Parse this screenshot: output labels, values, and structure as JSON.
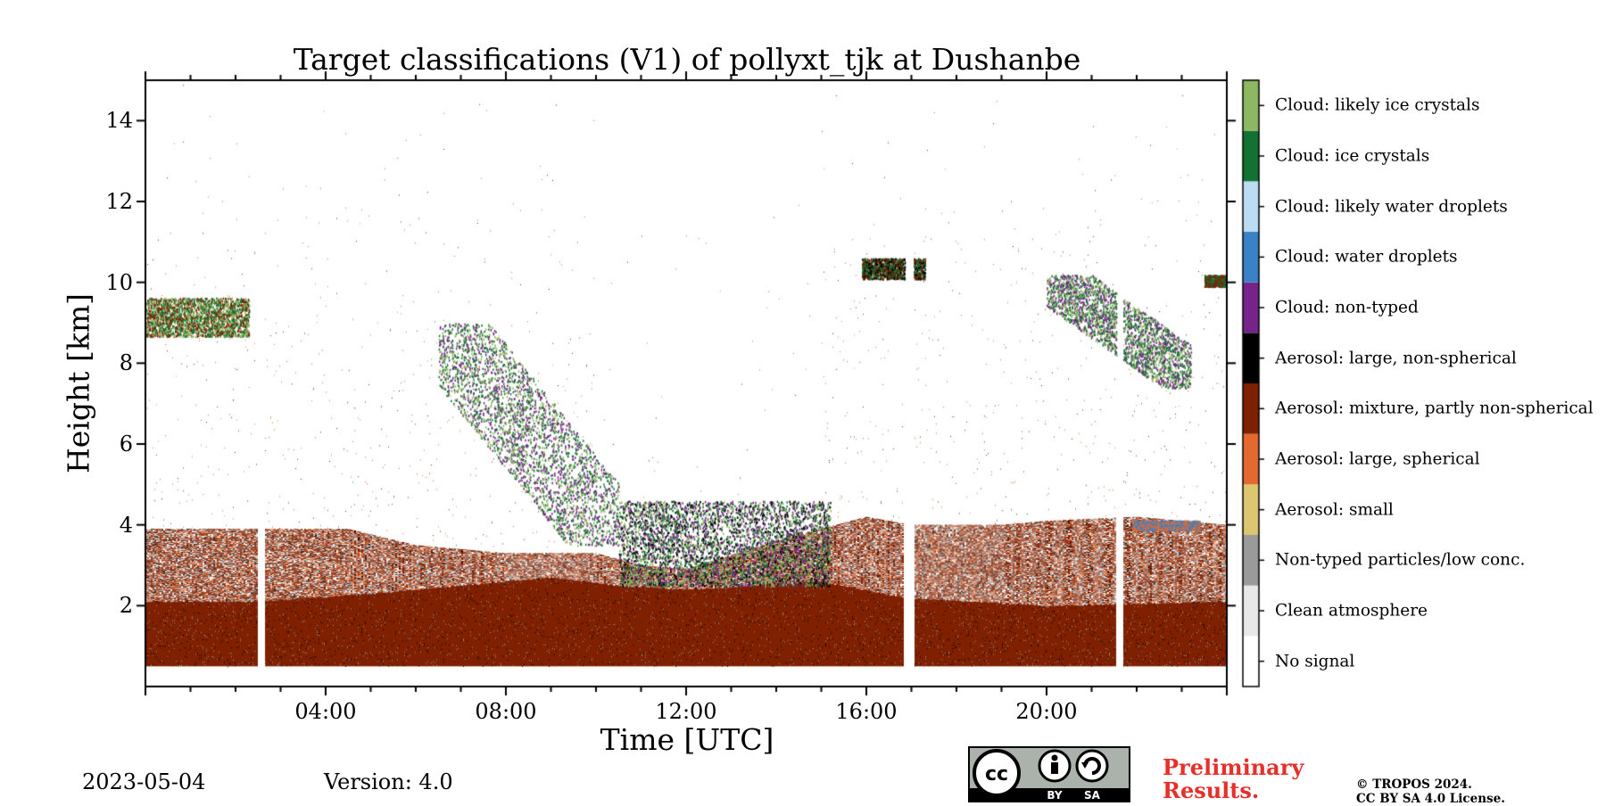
{
  "chart_data": {
    "type": "heatmap",
    "title": "Target classifications (V1) of pollyxt_tjk at Dushanbe",
    "xlabel": "Time [UTC]",
    "ylabel": "Height [km]",
    "xlim_hours": [
      0,
      24
    ],
    "ylim_km": [
      0,
      15
    ],
    "x_ticks": [
      {
        "hour": 4,
        "label": "04:00"
      },
      {
        "hour": 8,
        "label": "08:00"
      },
      {
        "hour": 12,
        "label": "12:00"
      },
      {
        "hour": 16,
        "label": "16:00"
      },
      {
        "hour": 20,
        "label": "20:00"
      }
    ],
    "y_ticks": [
      {
        "km": 2,
        "label": "2"
      },
      {
        "km": 4,
        "label": "4"
      },
      {
        "km": 6,
        "label": "6"
      },
      {
        "km": 8,
        "label": "8"
      },
      {
        "km": 10,
        "label": "10"
      },
      {
        "km": 12,
        "label": "12"
      },
      {
        "km": 14,
        "label": "14"
      }
    ],
    "classes": [
      {
        "id": 0,
        "label": "No signal",
        "color": "#ffffff"
      },
      {
        "id": 1,
        "label": "Clean atmosphere",
        "color": "#e8e8e8"
      },
      {
        "id": 2,
        "label": "Non-typed particles/low conc.",
        "color": "#9a9a9a"
      },
      {
        "id": 3,
        "label": "Aerosol: small",
        "color": "#dcc66f"
      },
      {
        "id": 4,
        "label": "Aerosol: large, spherical",
        "color": "#e4692f"
      },
      {
        "id": 5,
        "label": "Aerosol: mixture, partly non-spherical",
        "color": "#7f2000"
      },
      {
        "id": 6,
        "label": "Aerosol: large, non-spherical",
        "color": "#000000"
      },
      {
        "id": 7,
        "label": "Cloud: non-typed",
        "color": "#76248a"
      },
      {
        "id": 8,
        "label": "Cloud: water droplets",
        "color": "#3a82c7"
      },
      {
        "id": 9,
        "label": "Cloud: likely water droplets",
        "color": "#bcdcf3"
      },
      {
        "id": 10,
        "label": "Cloud: ice crystals",
        "color": "#137132"
      },
      {
        "id": 11,
        "label": "Cloud: likely ice crystals",
        "color": "#8db760"
      }
    ],
    "data_gaps_hours": [
      [
        2.5,
        2.65
      ],
      [
        16.85,
        17.05
      ],
      [
        21.55,
        21.7
      ]
    ],
    "base_layer": {
      "class_id": 5,
      "bottom_km": 0.5,
      "top_km_profile": [
        [
          0,
          2.1
        ],
        [
          2.5,
          2.1
        ],
        [
          5,
          2.3
        ],
        [
          9,
          2.7
        ],
        [
          10.5,
          2.5
        ],
        [
          12,
          2.4
        ],
        [
          15,
          2.6
        ],
        [
          16.85,
          2.2
        ],
        [
          20,
          2.0
        ],
        [
          24,
          2.1
        ]
      ]
    },
    "aerosol_top_km_profile": [
      [
        0,
        3.9
      ],
      [
        3,
        3.9
      ],
      [
        4.5,
        3.9
      ],
      [
        6,
        3.5
      ],
      [
        8,
        3.3
      ],
      [
        10,
        3.3
      ],
      [
        11,
        3.0
      ],
      [
        12,
        2.9
      ],
      [
        14,
        3.6
      ],
      [
        16,
        4.2
      ],
      [
        17,
        4.0
      ],
      [
        19,
        4.0
      ],
      [
        20,
        4.1
      ],
      [
        22,
        4.2
      ],
      [
        24,
        4.0
      ]
    ],
    "cloud_features": [
      {
        "name": "early cirrus",
        "t_range": [
          0,
          2.3
        ],
        "h_range_km": [
          8.3,
          10.0
        ],
        "classes": [
          10,
          5,
          11
        ]
      },
      {
        "name": "descending cirrus",
        "t_range": [
          6.5,
          10.5
        ],
        "h_range_km": [
          3.5,
          9.0
        ],
        "classes": [
          7,
          10,
          11
        ]
      },
      {
        "name": "midday convective",
        "t_range": [
          10.5,
          15.2
        ],
        "h_range_km": [
          2.5,
          4.6
        ],
        "classes": [
          7,
          10,
          11,
          6
        ]
      },
      {
        "name": "afternoon cirrus",
        "t_range": [
          15.9,
          17.3
        ],
        "h_range_km": [
          9.9,
          10.8
        ],
        "classes": [
          10,
          6,
          5
        ]
      },
      {
        "name": "evening cirrus",
        "t_range": [
          20,
          23.2
        ],
        "h_range_km": [
          7.4,
          10.2
        ],
        "classes": [
          10,
          7,
          11
        ]
      },
      {
        "name": "late cirrus",
        "t_range": [
          23.5,
          24
        ],
        "h_range_km": [
          9.8,
          10.3
        ],
        "classes": [
          10,
          5
        ]
      },
      {
        "name": "evening water cloud",
        "t_range": [
          21.9,
          23.4
        ],
        "h_range_km": [
          3.8,
          4.2
        ],
        "classes": [
          8,
          4
        ]
      }
    ]
  },
  "footer": {
    "date": "2023-05-04",
    "version": "Version: 4.0",
    "preliminary_line1": "Preliminary",
    "preliminary_line2": "Results.",
    "copyright_line1": "© TROPOS 2024.",
    "copyright_line2": "CC BY SA 4.0 License.",
    "cc_badge_by": "BY",
    "cc_badge_sa": "SA",
    "cc_badge_cc": "cc"
  }
}
